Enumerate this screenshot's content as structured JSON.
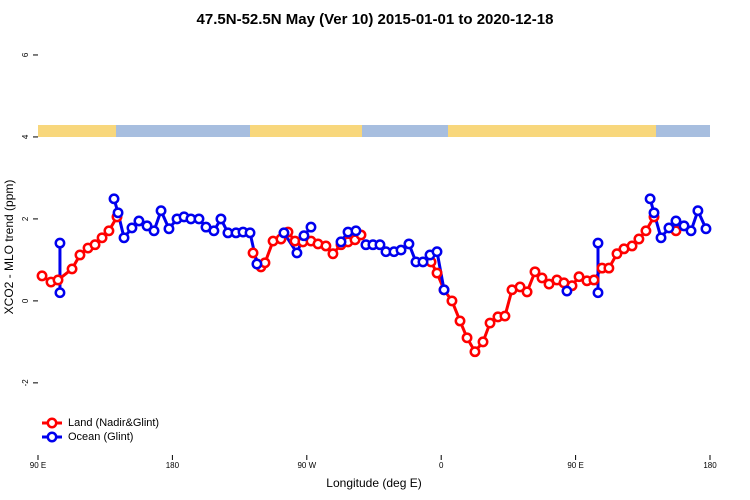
{
  "chart_data": {
    "type": "line",
    "title": "47.5N-52.5N May (Ver 10)   2015-01-01 to 2020-12-18",
    "x_label": "Longitude (deg E)",
    "y_label": "XCO2 - MLO trend (ppm)",
    "xlim": [
      90,
      540
    ],
    "xticks": [
      {
        "value": 90,
        "label": "90 E"
      },
      {
        "value": 180,
        "label": "180"
      },
      {
        "value": 270,
        "label": "90 W"
      },
      {
        "value": 360,
        "label": "0"
      },
      {
        "value": 450,
        "label": "90 E"
      },
      {
        "value": 540,
        "label": "180"
      }
    ],
    "ylim": [
      -3.76,
      6.37
    ],
    "yticks": [
      -2,
      0,
      2,
      4,
      6
    ],
    "legend": "bottom-left",
    "series": [
      {
        "name": "Land (Nadir&Glint)",
        "color": "#ff0000",
        "x": [
          92.7,
          98.7,
          103.4,
          112.8,
          118.1,
          123.5,
          128.2,
          132.9,
          137.5,
          142.9,
          null,
          234.0,
          239.3,
          242.0,
          247.4,
          252.7,
          257.4,
          262.1,
          267.4,
          272.8,
          277.5,
          282.8,
          287.5,
          292.9,
          297.6,
          302.3,
          306.3,
          null,
          353.2,
          357.2,
          361.9,
          367.2,
          372.6,
          377.3,
          382.6,
          388.0,
          392.7,
          398.0,
          402.7,
          407.4,
          412.8,
          417.5,
          422.8,
          427.5,
          432.2,
          437.5,
          442.2,
          447.6,
          452.3,
          457.6,
          462.3,
          467.7,
          472.3,
          477.7,
          482.4,
          487.8,
          492.4,
          497.1,
          502.5,
          null,
          517.2
        ],
        "values": [
          0.61,
          0.46,
          0.51,
          0.78,
          1.12,
          1.29,
          1.37,
          1.54,
          1.71,
          2.05,
          null,
          1.17,
          0.83,
          0.93,
          1.46,
          1.51,
          1.68,
          1.46,
          1.44,
          1.46,
          1.39,
          1.34,
          1.15,
          1.37,
          1.44,
          1.49,
          1.61,
          null,
          0.95,
          0.68,
          0.27,
          0.0,
          -0.49,
          -0.9,
          -1.24,
          -1.0,
          -0.54,
          -0.39,
          -0.37,
          0.27,
          0.34,
          0.22,
          0.71,
          0.56,
          0.41,
          0.51,
          0.44,
          0.37,
          0.59,
          0.49,
          0.51,
          0.8,
          0.8,
          1.15,
          1.27,
          1.34,
          1.51,
          1.71,
          2.05,
          null,
          1.71
        ]
      },
      {
        "name": "Ocean (Glint)",
        "color": "#0000ee",
        "x": [
          104.7,
          104.7,
          null,
          140.9,
          143.6,
          147.6,
          152.9,
          157.6,
          163.0,
          167.7,
          172.4,
          177.7,
          183.1,
          187.8,
          192.4,
          197.8,
          202.5,
          207.8,
          212.5,
          217.2,
          222.6,
          227.3,
          232.0,
          236.6,
          null,
          254.7,
          263.4,
          268.1,
          272.8,
          null,
          292.9,
          297.6,
          302.9,
          null,
          309.6,
          314.3,
          319.0,
          323.0,
          328.4,
          333.1,
          338.4,
          343.1,
          347.8,
          352.5,
          357.2,
          361.9,
          null,
          444.2,
          null,
          465.0,
          465.0,
          null,
          499.9,
          502.5,
          507.2,
          512.5,
          517.2,
          522.6,
          527.3,
          531.9,
          537.3
        ],
        "values": [
          1.41,
          0.2,
          null,
          2.49,
          2.15,
          1.54,
          1.78,
          1.95,
          1.83,
          1.71,
          2.2,
          1.76,
          2.0,
          2.05,
          2.0,
          2.0,
          1.8,
          1.71,
          2.0,
          1.66,
          1.66,
          1.68,
          1.66,
          0.9,
          null,
          1.66,
          1.17,
          1.59,
          1.8,
          null,
          1.44,
          1.68,
          1.71,
          null,
          1.37,
          1.37,
          1.37,
          1.2,
          1.2,
          1.24,
          1.39,
          0.95,
          0.95,
          1.12,
          1.2,
          0.27,
          null,
          0.24,
          null,
          1.41,
          0.2,
          null,
          2.49,
          2.15,
          1.54,
          1.78,
          1.95,
          1.83,
          1.71,
          2.2,
          1.76
        ]
      }
    ]
  }
}
